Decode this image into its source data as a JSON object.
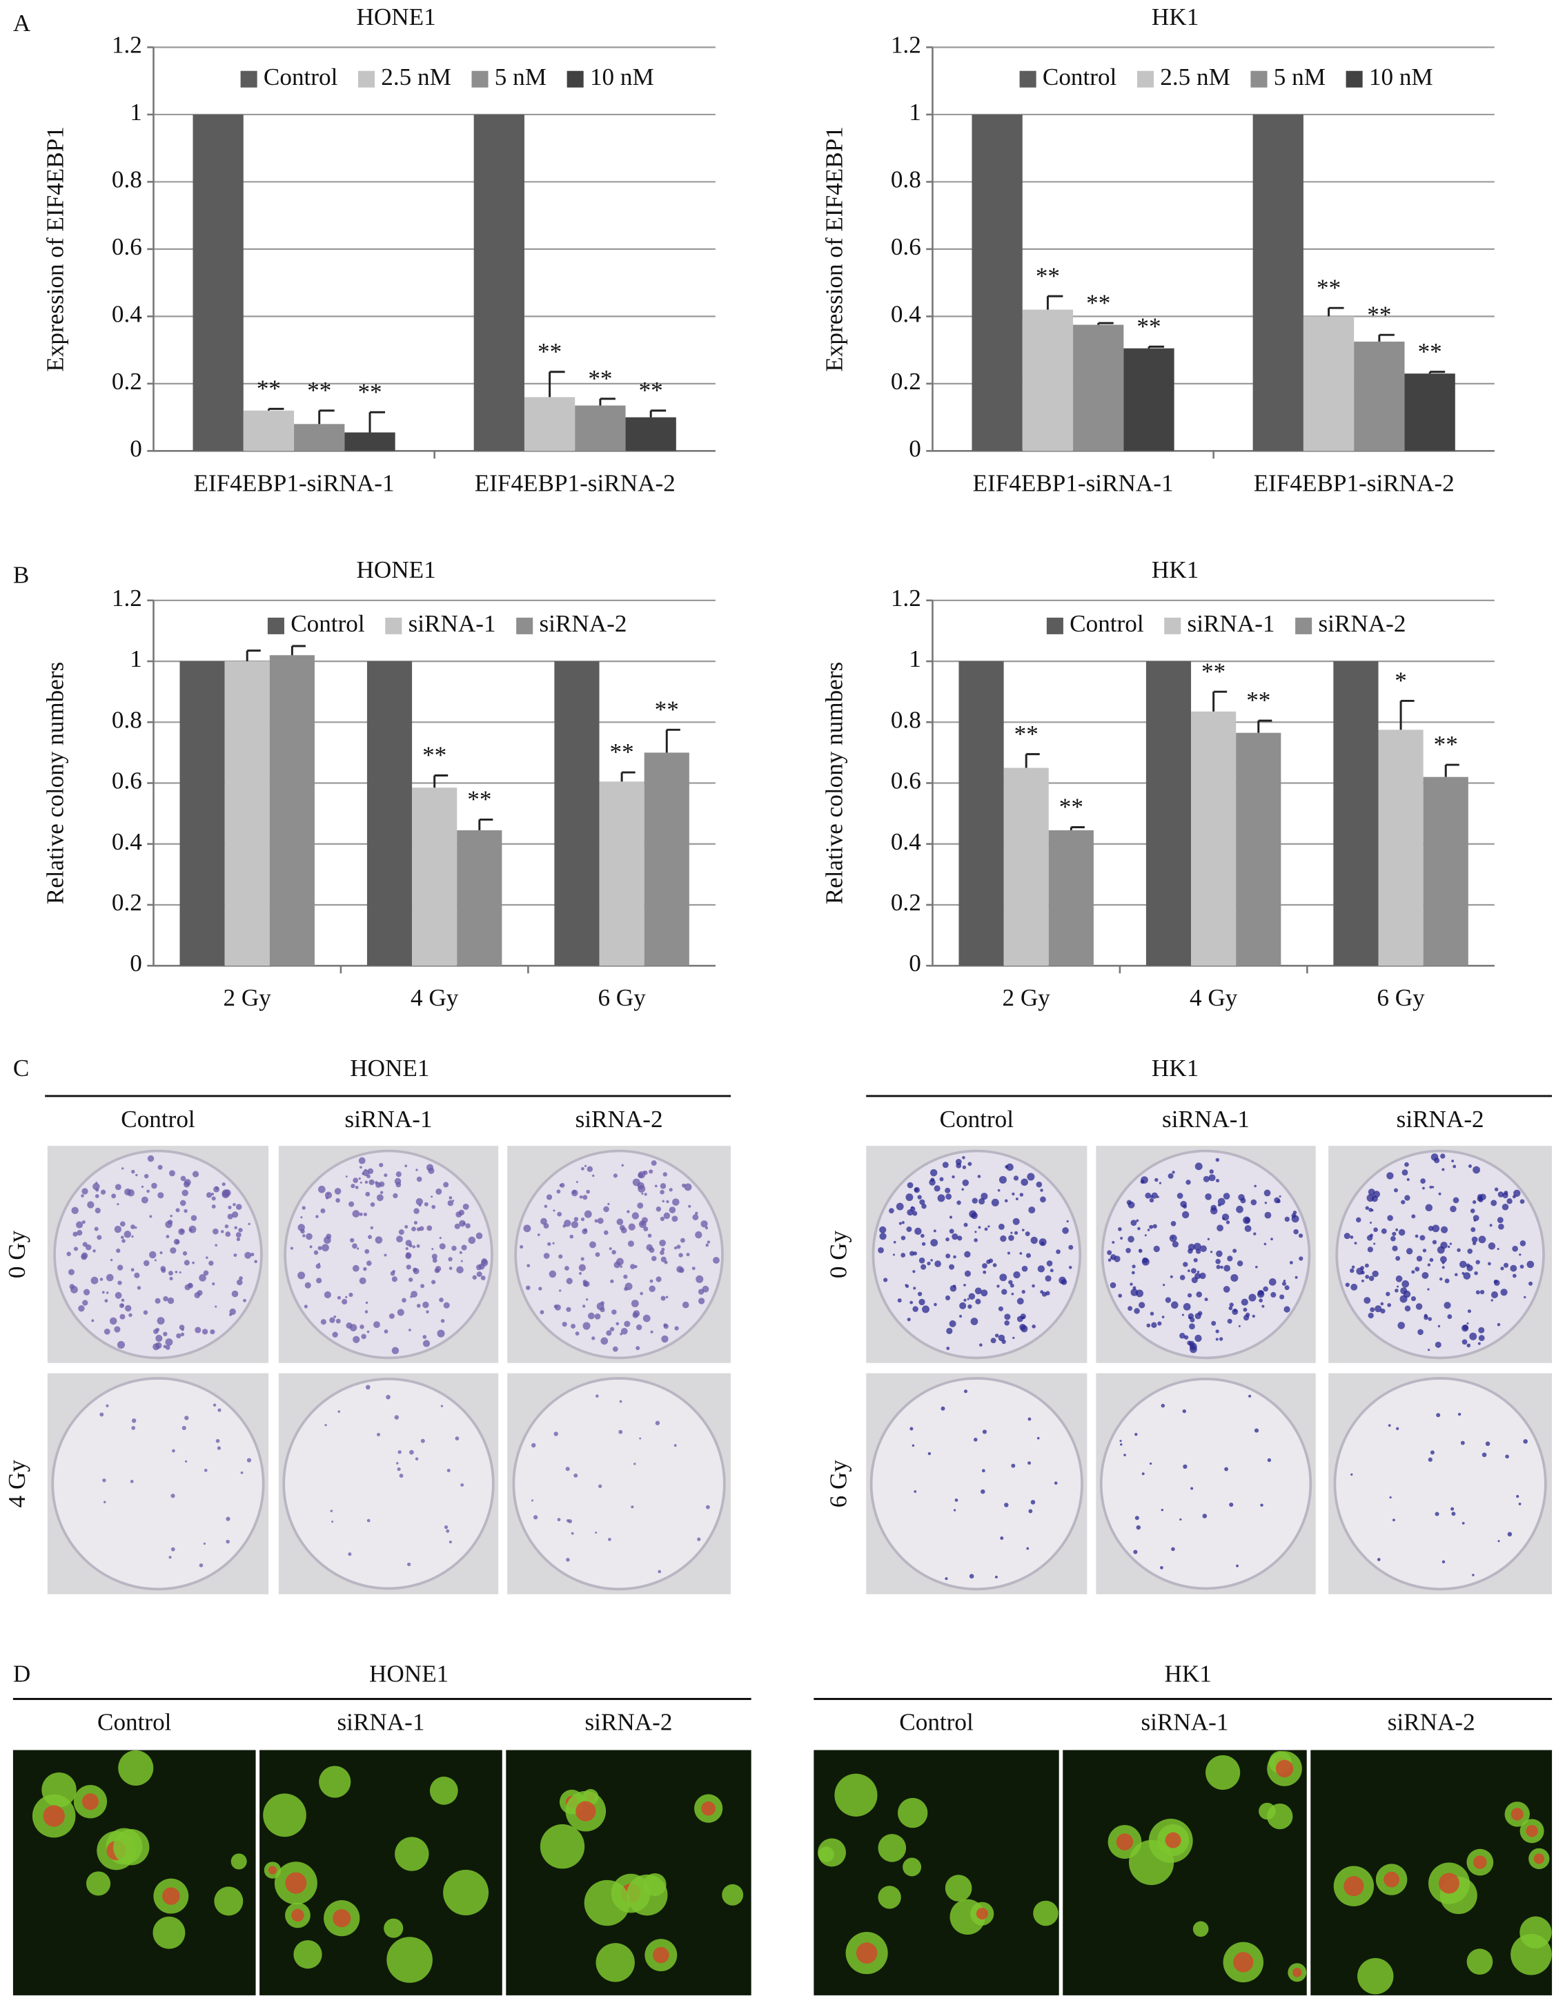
{
  "panel_labels": [
    "A",
    "B",
    "C",
    "D"
  ],
  "chart_data": [
    {
      "type": "bar",
      "title": "HONE1",
      "y_label": "Expression of EIF4EBP1",
      "categories": [
        "EIF4EBP1-siRNA-1",
        "EIF4EBP1-siRNA-2"
      ],
      "series": [
        {
          "name": "Control",
          "color": "#5c5c5c",
          "values": [
            1,
            1
          ]
        },
        {
          "name": "2.5 nM",
          "color": "#c4c4c4",
          "values": [
            0.12,
            0.16
          ],
          "errors": [
            0.005,
            0.075
          ],
          "annotations": [
            "**",
            "**"
          ]
        },
        {
          "name": "5 nM",
          "color": "#8e8e8e",
          "values": [
            0.08,
            0.135
          ],
          "errors": [
            0.04,
            0.02
          ],
          "annotations": [
            "**",
            "**"
          ]
        },
        {
          "name": "10 nM",
          "color": "#424242",
          "values": [
            0.055,
            0.1
          ],
          "errors": [
            0.06,
            0.02
          ],
          "annotations": [
            "**",
            "**"
          ]
        }
      ],
      "ylim": [
        0,
        1.2
      ],
      "yticks": [
        0,
        0.2,
        0.4,
        0.6,
        0.8,
        1,
        1.2
      ],
      "grid": true,
      "legend": "top"
    },
    {
      "type": "bar",
      "title": "HK1",
      "y_label": "Expression of EIF4EBP1",
      "categories": [
        "EIF4EBP1-siRNA-1",
        "EIF4EBP1-siRNA-2"
      ],
      "series": [
        {
          "name": "Control",
          "color": "#5c5c5c",
          "values": [
            1,
            1
          ]
        },
        {
          "name": "2.5 nM",
          "color": "#c4c4c4",
          "values": [
            0.42,
            0.4
          ],
          "errors": [
            0.04,
            0.025
          ],
          "annotations": [
            "**",
            "**"
          ]
        },
        {
          "name": "5 nM",
          "color": "#8e8e8e",
          "values": [
            0.375,
            0.325
          ],
          "errors": [
            0.005,
            0.02
          ],
          "annotations": [
            "**",
            "**"
          ]
        },
        {
          "name": "10 nM",
          "color": "#424242",
          "values": [
            0.305,
            0.23
          ],
          "errors": [
            0.005,
            0.005
          ],
          "annotations": [
            "**",
            "**"
          ]
        }
      ],
      "ylim": [
        0,
        1.2
      ],
      "yticks": [
        0,
        0.2,
        0.4,
        0.6,
        0.8,
        1,
        1.2
      ],
      "grid": true,
      "legend": "top"
    },
    {
      "type": "bar",
      "title": "HONE1",
      "y_label": "Relative colony numbers",
      "categories": [
        "2 Gy",
        "4 Gy",
        "6 Gy"
      ],
      "series": [
        {
          "name": "Control",
          "color": "#5c5c5c",
          "values": [
            1,
            1,
            1
          ]
        },
        {
          "name": "siRNA-1",
          "color": "#c4c4c4",
          "values": [
            1.0,
            0.585,
            0.605
          ],
          "errors": [
            0.035,
            0.04,
            0.03
          ],
          "annotations": [
            null,
            "**",
            "**"
          ]
        },
        {
          "name": "siRNA-2",
          "color": "#8e8e8e",
          "values": [
            1.02,
            0.445,
            0.7
          ],
          "errors": [
            0.03,
            0.035,
            0.075
          ],
          "annotations": [
            null,
            "**",
            "**"
          ]
        }
      ],
      "ylim": [
        0,
        1.2
      ],
      "yticks": [
        0,
        0.2,
        0.4,
        0.6,
        0.8,
        1,
        1.2
      ],
      "grid": true,
      "legend": "top"
    },
    {
      "type": "bar",
      "title": "HK1",
      "y_label": "Relative colony numbers",
      "categories": [
        "2 Gy",
        "4 Gy",
        "6 Gy"
      ],
      "series": [
        {
          "name": "Control",
          "color": "#5c5c5c",
          "values": [
            1,
            1,
            1
          ]
        },
        {
          "name": "siRNA-1",
          "color": "#c4c4c4",
          "values": [
            0.65,
            0.835,
            0.775
          ],
          "errors": [
            0.045,
            0.065,
            0.095
          ],
          "annotations": [
            "**",
            "**",
            "*"
          ]
        },
        {
          "name": "siRNA-2",
          "color": "#8e8e8e",
          "values": [
            0.445,
            0.765,
            0.62
          ],
          "errors": [
            0.01,
            0.04,
            0.04
          ],
          "annotations": [
            "**",
            "**",
            "**"
          ]
        }
      ],
      "ylim": [
        0,
        1.2
      ],
      "yticks": [
        0,
        0.2,
        0.4,
        0.6,
        0.8,
        1,
        1.2
      ],
      "grid": true,
      "legend": "top"
    }
  ],
  "colony_assay": [
    {
      "title": "HONE1",
      "columns": [
        "Control",
        "siRNA-1",
        "siRNA-2"
      ],
      "rows": [
        "0 Gy",
        "4 Gy"
      ]
    },
    {
      "title": "HK1",
      "columns": [
        "Control",
        "siRNA-1",
        "siRNA-2"
      ],
      "rows": [
        "0 Gy",
        "6 Gy"
      ]
    }
  ],
  "fluorescence": [
    {
      "title": "HONE1",
      "columns": [
        "Control",
        "siRNA-1",
        "siRNA-2"
      ]
    },
    {
      "title": "HK1",
      "columns": [
        "Control",
        "siRNA-1",
        "siRNA-2"
      ]
    }
  ]
}
